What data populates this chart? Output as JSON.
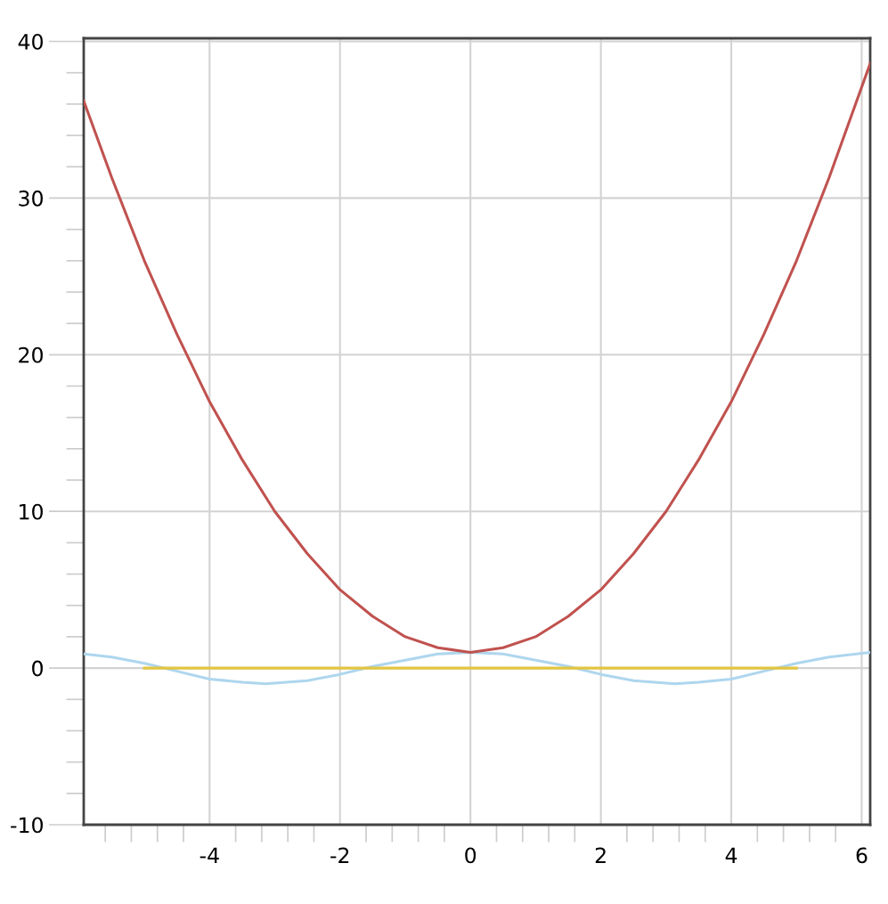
{
  "chart_data": {
    "type": "line",
    "xlim": [
      -5.93,
      6.13
    ],
    "ylim": [
      -10,
      40.2
    ],
    "xticks": [
      -4,
      -2,
      0,
      2,
      4,
      6
    ],
    "yticks": [
      -10,
      0,
      10,
      20,
      30,
      40
    ],
    "grid": true,
    "legend": false,
    "marker": "none",
    "line_style": "solid",
    "series": [
      {
        "color": "#aed6ee",
        "x": [
          -5.93,
          -5.5,
          -5,
          -4.5,
          -4,
          -3.5,
          -3.14,
          -2.5,
          -2,
          -1.5,
          -1,
          -0.5,
          0,
          0.5,
          1,
          1.5,
          2,
          2.5,
          3.14,
          3.5,
          4,
          4.5,
          5,
          5.5,
          6.13
        ],
        "values": [
          0.9,
          0.7,
          0.3,
          -0.2,
          -0.7,
          -0.9,
          -1.0,
          -0.8,
          -0.4,
          0.1,
          0.5,
          0.9,
          1.0,
          0.9,
          0.5,
          0.1,
          -0.4,
          -0.8,
          -1.0,
          -0.9,
          -0.7,
          -0.2,
          0.3,
          0.7,
          1.0
        ]
      },
      {
        "color": "#e2c540",
        "x": [
          -5,
          5
        ],
        "values": [
          0,
          0
        ]
      },
      {
        "color": "#c0524f",
        "x": [
          -5.93,
          -5.5,
          -5,
          -4.5,
          -4,
          -3.5,
          -3,
          -2.5,
          -2,
          -1.5,
          -1,
          -0.5,
          0,
          0.5,
          1,
          1.5,
          2,
          2.5,
          3,
          3.5,
          4,
          4.5,
          5,
          5.5,
          6.13
        ],
        "values": [
          36.2,
          31.3,
          26,
          21.3,
          17,
          13.3,
          10,
          7.3,
          5,
          3.3,
          2,
          1.3,
          1,
          1.3,
          2,
          3.3,
          5,
          7.3,
          10,
          13.3,
          17,
          21.3,
          26,
          31.3,
          38.6
        ]
      }
    ]
  }
}
